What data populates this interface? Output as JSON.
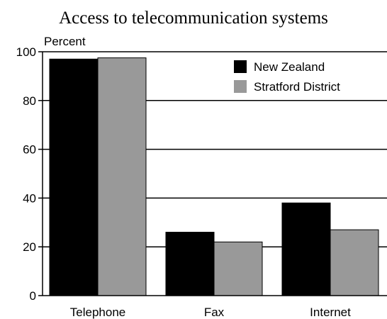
{
  "chart_data": {
    "type": "bar",
    "title": "Access to telecommunication systems",
    "ylabel": "Percent",
    "xlabel": "",
    "categories": [
      "Telephone",
      "Fax",
      "Internet"
    ],
    "series": [
      {
        "name": "New Zealand",
        "values": [
          97,
          26,
          38
        ],
        "color": "#000000"
      },
      {
        "name": "Stratford District",
        "values": [
          97.5,
          22,
          27
        ],
        "color": "#999999"
      }
    ],
    "ylim": [
      0,
      100
    ],
    "yticks": [
      0,
      20,
      40,
      60,
      80,
      100
    ],
    "grid": true,
    "legend": "top-right"
  }
}
